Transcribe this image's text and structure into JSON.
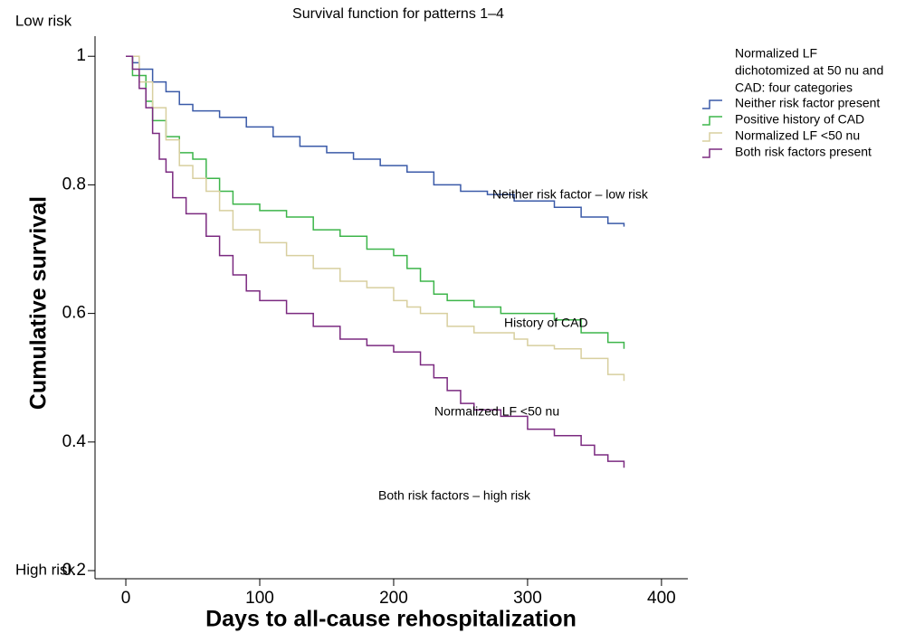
{
  "chart_data": {
    "type": "step",
    "title": "Survival function for patterns 1–4",
    "x_label": "Days to all-cause rehospitalization",
    "y_label": "Cumulative survival",
    "y_top_note": "Low risk",
    "y_bottom_note": "High risk",
    "xlim": [
      -23,
      419
    ],
    "xticks": [
      0,
      100,
      200,
      300,
      400
    ],
    "ylim": [
      0.2,
      1.02
    ],
    "yticks": [
      0.2,
      0.4,
      0.6,
      0.8,
      1.0
    ],
    "grid": false,
    "legend_position": "upper right",
    "legend_title": [
      "Normalized LF",
      "dichotomized at 50 nu and",
      "CAD: four categories"
    ],
    "annotations": [
      "Neither risk factor – low risk",
      "History of CAD",
      "Normalized LF <50 nu",
      "Both risk factors – high risk"
    ],
    "series": [
      {
        "name": "Neither risk factor present",
        "color": "#3a5aa8",
        "x": [
          0,
          5,
          10,
          20,
          30,
          40,
          50,
          70,
          90,
          110,
          130,
          150,
          170,
          190,
          210,
          230,
          250,
          270,
          290,
          320,
          340,
          360,
          372
        ],
        "values": [
          1.0,
          0.99,
          0.98,
          0.96,
          0.945,
          0.925,
          0.915,
          0.905,
          0.89,
          0.875,
          0.86,
          0.85,
          0.84,
          0.83,
          0.82,
          0.8,
          0.79,
          0.785,
          0.775,
          0.765,
          0.75,
          0.74,
          0.735
        ]
      },
      {
        "name": "Positive history of CAD",
        "color": "#3db54a",
        "x": [
          0,
          5,
          15,
          20,
          30,
          40,
          50,
          60,
          70,
          80,
          100,
          120,
          140,
          160,
          180,
          200,
          210,
          220,
          230,
          240,
          260,
          280,
          320,
          340,
          360,
          372
        ],
        "values": [
          1.0,
          0.97,
          0.93,
          0.9,
          0.875,
          0.85,
          0.84,
          0.81,
          0.79,
          0.77,
          0.76,
          0.75,
          0.73,
          0.72,
          0.7,
          0.69,
          0.67,
          0.65,
          0.63,
          0.62,
          0.61,
          0.6,
          0.59,
          0.57,
          0.555,
          0.545
        ]
      },
      {
        "name": "Normalized LF <50 nu",
        "color": "#d8cf9f",
        "x": [
          0,
          10,
          20,
          30,
          40,
          50,
          60,
          70,
          80,
          100,
          120,
          140,
          160,
          180,
          200,
          210,
          220,
          240,
          260,
          290,
          300,
          320,
          340,
          360,
          372
        ],
        "values": [
          1.0,
          0.96,
          0.92,
          0.87,
          0.83,
          0.81,
          0.79,
          0.76,
          0.73,
          0.71,
          0.69,
          0.67,
          0.65,
          0.64,
          0.62,
          0.61,
          0.6,
          0.58,
          0.57,
          0.56,
          0.55,
          0.545,
          0.53,
          0.505,
          0.495
        ]
      },
      {
        "name": "Both risk factors present",
        "color": "#7b2a80",
        "x": [
          0,
          5,
          10,
          15,
          20,
          25,
          30,
          35,
          45,
          60,
          70,
          80,
          90,
          100,
          120,
          140,
          160,
          180,
          200,
          220,
          230,
          240,
          250,
          260,
          280,
          300,
          320,
          340,
          350,
          360,
          372
        ],
        "values": [
          1.0,
          0.98,
          0.95,
          0.92,
          0.88,
          0.84,
          0.82,
          0.78,
          0.755,
          0.72,
          0.69,
          0.66,
          0.635,
          0.62,
          0.6,
          0.58,
          0.56,
          0.55,
          0.54,
          0.52,
          0.5,
          0.48,
          0.46,
          0.45,
          0.44,
          0.42,
          0.41,
          0.395,
          0.38,
          0.37,
          0.36
        ]
      }
    ]
  }
}
